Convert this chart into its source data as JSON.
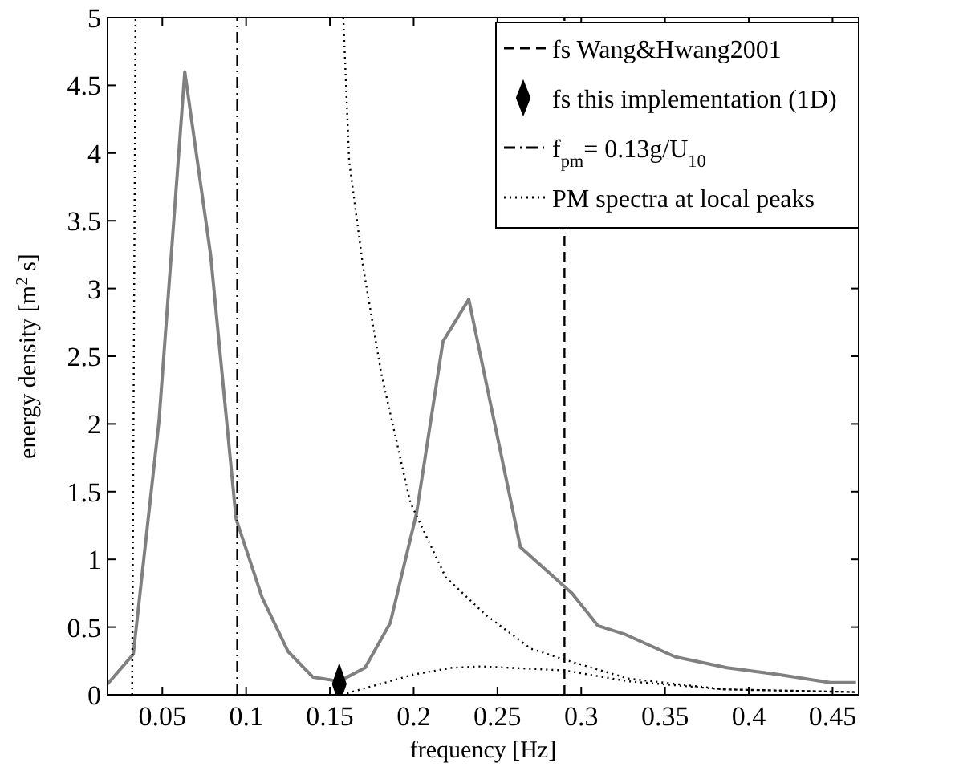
{
  "chart_data": {
    "type": "line",
    "xlabel": "frequency [Hz]",
    "ylabel": "energy density [m$^{2}$ s]",
    "xlim": [
      0.0173,
      0.4656
    ],
    "ylim": [
      0,
      5
    ],
    "xticks": [
      0.05,
      0.1,
      0.15,
      0.2,
      0.25,
      0.3,
      0.35,
      0.4,
      0.45
    ],
    "yticks": [
      0,
      0.5,
      1,
      1.5,
      2,
      2.5,
      3,
      3.5,
      4,
      4.5,
      5
    ],
    "grid": false,
    "legend": "top right",
    "series": [
      {
        "color": "#808080",
        "line_style": "solid",
        "marker": "none",
        "x": [
          0.0173,
          0.0327,
          0.048,
          0.0634,
          0.0788,
          0.094,
          0.1095,
          0.125,
          0.14,
          0.1556,
          0.171,
          0.186,
          0.2017,
          0.2175,
          0.2329,
          0.2637,
          0.2945,
          0.31,
          0.3254,
          0.3562,
          0.387,
          0.4178,
          0.4486,
          0.464
        ],
        "values": [
          0.08,
          0.3,
          2.02,
          4.6,
          3.25,
          1.3,
          0.72,
          0.32,
          0.13,
          0.1,
          0.2,
          0.53,
          1.34,
          2.61,
          2.92,
          1.09,
          0.75,
          0.51,
          0.45,
          0.28,
          0.2,
          0.15,
          0.09,
          0.09
        ]
      },
      {
        "type": "line",
        "name": "fs Wang&Hwang2001",
        "color": "#000000",
        "line_style": "dashed",
        "marker": "none",
        "x": [
          0.29,
          0.29
        ],
        "values": [
          0,
          5
        ]
      },
      {
        "type": "scatter",
        "name": "fs this implementation (1D)",
        "color": "#000000",
        "marker": "diamond",
        "x": [
          0.1556
        ],
        "values": [
          0.08
        ]
      },
      {
        "type": "line",
        "name": "f$_{pm}$= 0.13g/U$_{10}$",
        "color": "#000000",
        "line_style": "dashdot",
        "marker": "none",
        "x": [
          0.0947,
          0.0947
        ],
        "values": [
          0,
          5
        ]
      },
      {
        "type": "line",
        "name": "PM spectra at local peaks",
        "color": "#000000",
        "line_style": "dotted",
        "marker": "none",
        "x": [
          0.032,
          0.034,
          null,
          0.158,
          0.1615,
          0.1698,
          0.1807,
          0.198,
          0.219,
          0.243,
          0.27,
          0.29,
          0.328,
          0.385,
          0.464,
          null,
          0.157,
          0.18,
          0.2,
          0.223,
          0.24,
          0.257,
          0.29,
          0.328,
          0.385,
          0.464
        ],
        "values": [
          0,
          5,
          null,
          5,
          3.94,
          3.16,
          2.37,
          1.42,
          0.87,
          0.59,
          0.34,
          0.26,
          0.12,
          0.04,
          0.02,
          null,
          0,
          0.08,
          0.15,
          0.2,
          0.21,
          0.2,
          0.18,
          0.1,
          0.04,
          0.02
        ]
      }
    ]
  }
}
